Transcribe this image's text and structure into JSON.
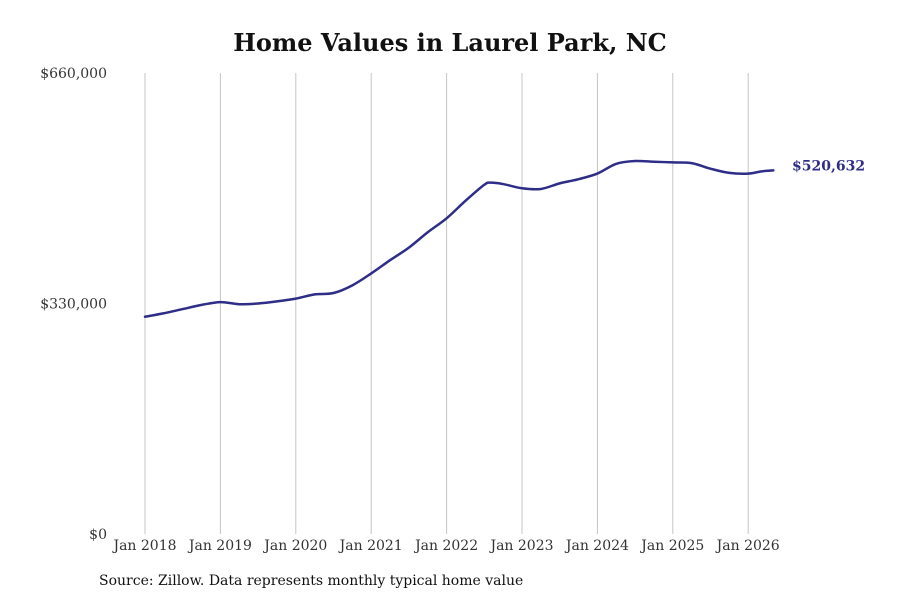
{
  "chart_data": {
    "type": "line",
    "title": "Home Values in Laurel Park, NC",
    "xlabel": "",
    "ylabel": "",
    "x_tick_labels": [
      "Jan 2018",
      "Jan 2019",
      "Jan 2020",
      "Jan 2021",
      "Jan 2022",
      "Jan 2023",
      "Jan 2024",
      "Jan 2025",
      "Jan 2026"
    ],
    "y_tick_labels": [
      "$0",
      "$330,000",
      "$660,000"
    ],
    "y_ticks": [
      0,
      330000,
      660000
    ],
    "ylim": [
      0,
      660000
    ],
    "xlim": [
      "2018-01",
      "2026-05"
    ],
    "grid": "vertical",
    "series": [
      {
        "name": "",
        "color": "#2e2d88",
        "end_label": "$520,632",
        "points": [
          [
            "2018-01",
            311000
          ],
          [
            "2018-04",
            316000
          ],
          [
            "2018-07",
            322000
          ],
          [
            "2018-10",
            328000
          ],
          [
            "2019-01",
            332000
          ],
          [
            "2019-04",
            329000
          ],
          [
            "2019-07",
            330000
          ],
          [
            "2019-10",
            333000
          ],
          [
            "2020-01",
            337000
          ],
          [
            "2020-04",
            343000
          ],
          [
            "2020-07",
            345000
          ],
          [
            "2020-10",
            356000
          ],
          [
            "2021-01",
            373000
          ],
          [
            "2021-04",
            392000
          ],
          [
            "2021-07",
            410000
          ],
          [
            "2021-10",
            432000
          ],
          [
            "2022-01",
            452000
          ],
          [
            "2022-04",
            477000
          ],
          [
            "2022-07",
            500000
          ],
          [
            "2022-08",
            503000
          ],
          [
            "2022-10",
            501000
          ],
          [
            "2023-01",
            495000
          ],
          [
            "2023-04",
            494000
          ],
          [
            "2023-07",
            502000
          ],
          [
            "2023-10",
            508000
          ],
          [
            "2024-01",
            516000
          ],
          [
            "2024-04",
            530000
          ],
          [
            "2024-07",
            534000
          ],
          [
            "2024-10",
            533000
          ],
          [
            "2025-01",
            532000
          ],
          [
            "2025-04",
            531000
          ],
          [
            "2025-07",
            523000
          ],
          [
            "2025-10",
            517000
          ],
          [
            "2026-01",
            516000
          ],
          [
            "2026-03",
            519000
          ],
          [
            "2026-05",
            520632
          ]
        ]
      }
    ]
  },
  "footer": {
    "source": "Source: Zillow. Data represents monthly typical home value"
  }
}
